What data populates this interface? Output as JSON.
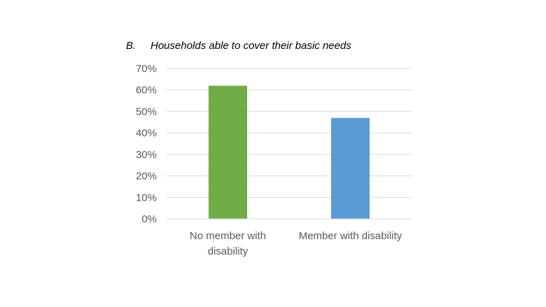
{
  "chart_data": {
    "type": "bar",
    "title_letter": "B.",
    "title": "Households able to cover their basic needs",
    "xlabel": "",
    "ylabel": "",
    "categories": [
      [
        "No member with",
        "disability"
      ],
      [
        "Member with disability"
      ]
    ],
    "values": [
      0.62,
      0.47
    ],
    "bar_colors": [
      "#70ad47",
      "#5b9bd5"
    ],
    "ylim": [
      0,
      0.7
    ],
    "yticks": [
      "0%",
      "10%",
      "20%",
      "30%",
      "40%",
      "50%",
      "60%",
      "70%"
    ],
    "grid": true,
    "gridline_color": "#d9d9d9",
    "legend": "none"
  }
}
